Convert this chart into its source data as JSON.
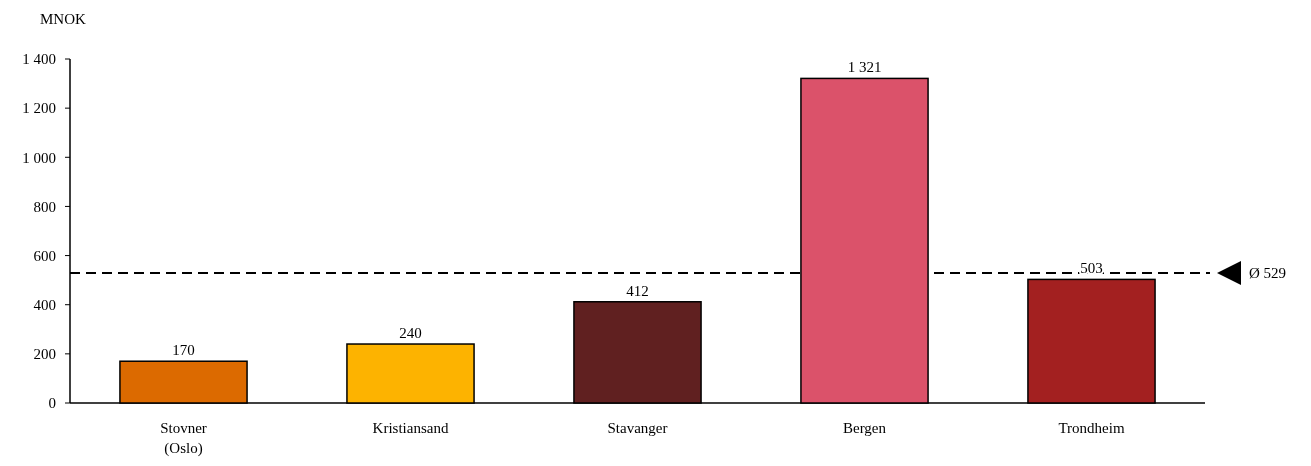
{
  "chart_data": {
    "type": "bar",
    "ylabel": "MNOK",
    "categories": [
      "Stovner (Oslo)",
      "Kristiansand",
      "Stavanger",
      "Bergen",
      "Trondheim"
    ],
    "values": [
      170,
      240,
      412,
      1321,
      503
    ],
    "colors": [
      "#dc6a00",
      "#fdb300",
      "#602020",
      "#db526a",
      "#a32020"
    ],
    "value_labels": [
      "170",
      "240",
      "412",
      "1 321",
      "503"
    ],
    "ylim": [
      0,
      1400
    ],
    "yticks": [
      0,
      200,
      400,
      600,
      800,
      {
        "value": 1000,
        "label": "1 000"
      },
      {
        "value": 1200,
        "label": "1 200"
      },
      {
        "value": 1400,
        "label": "1 400"
      }
    ],
    "ref_lines": [
      {
        "axis": "y",
        "value": 529,
        "label": "Ø 529",
        "line_style": "dashed",
        "color": "#000000"
      }
    ]
  }
}
